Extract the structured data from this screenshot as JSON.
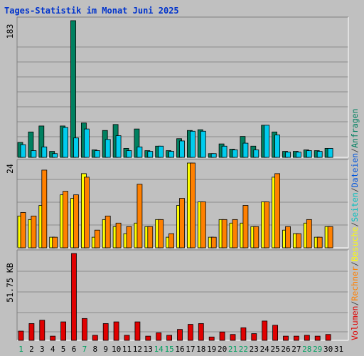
{
  "title": "Tages-Statistik im Monat Juni 2025",
  "colors": {
    "background": "#c0c0c0",
    "title": "#0033cc",
    "grid": "#8c8c8c",
    "requests": "#008060",
    "files": "#00ccee",
    "visits": "#ffff00",
    "hosts": "#ff8000",
    "volume": "#e00000",
    "weekday_label": "#008000",
    "weekend_label": "#00a060"
  },
  "legend": {
    "volume": "Volumen",
    "sep1": "/",
    "hosts": "Rechner",
    "sep2": "/",
    "visits": "Besuche",
    "sep3": "/",
    "pages": "Seiten",
    "sep4": "/",
    "files": "Dateien",
    "sep5": "/",
    "requests": "Anfragen"
  },
  "chart_data": [
    {
      "type": "bar",
      "panel": "hits",
      "ymax_label": "183",
      "ylim": [
        0,
        183
      ],
      "categories": [
        "1",
        "2",
        "3",
        "4",
        "5",
        "6",
        "7",
        "8",
        "9",
        "10",
        "11",
        "12",
        "13",
        "14",
        "15",
        "16",
        "17",
        "18",
        "19",
        "20",
        "21",
        "22",
        "23",
        "24",
        "25",
        "26",
        "27",
        "28",
        "29",
        "30",
        "31"
      ],
      "weekend_days": [
        1,
        7,
        14,
        15,
        21,
        22,
        28,
        29
      ],
      "series": [
        {
          "name": "Anfragen",
          "values": [
            20,
            34,
            42,
            8,
            42,
            183,
            46,
            10,
            36,
            44,
            12,
            38,
            9,
            15,
            9,
            25,
            36,
            37,
            5,
            18,
            11,
            28,
            15,
            43,
            34,
            8,
            8,
            10,
            9,
            12,
            null
          ]
        },
        {
          "name": "Dateien",
          "values": [
            17,
            9,
            14,
            5,
            40,
            26,
            38,
            9,
            24,
            29,
            9,
            14,
            8,
            15,
            8,
            22,
            35,
            35,
            5,
            15,
            10,
            19,
            10,
            43,
            30,
            7,
            7,
            9,
            8,
            12,
            null
          ]
        }
      ]
    },
    {
      "type": "bar",
      "panel": "visits",
      "ymax_label": "24",
      "ylim": [
        0,
        24
      ],
      "categories": [
        "1",
        "2",
        "3",
        "4",
        "5",
        "6",
        "7",
        "8",
        "9",
        "10",
        "11",
        "12",
        "13",
        "14",
        "15",
        "16",
        "17",
        "18",
        "19",
        "20",
        "21",
        "22",
        "23",
        "24",
        "25",
        "26",
        "27",
        "28",
        "29",
        "30",
        "31"
      ],
      "series": [
        {
          "name": "Besuche",
          "values": [
            9,
            8,
            12,
            3,
            15,
            14,
            21,
            3,
            8,
            6,
            4,
            7,
            6,
            8,
            3,
            12,
            24,
            13,
            3,
            8,
            7,
            7,
            6,
            13,
            20,
            5,
            4,
            7,
            3,
            6,
            null
          ]
        },
        {
          "name": "Rechner",
          "values": [
            10,
            9,
            22,
            3,
            16,
            15,
            20,
            5,
            9,
            7,
            6,
            18,
            6,
            8,
            4,
            14,
            24,
            13,
            3,
            8,
            8,
            12,
            6,
            13,
            21,
            6,
            4,
            8,
            3,
            6,
            null
          ]
        }
      ]
    },
    {
      "type": "bar",
      "panel": "volume",
      "ymax_label": "51.75 KB",
      "ylim": [
        0,
        51.75
      ],
      "unit": "KB",
      "categories": [
        "1",
        "2",
        "3",
        "4",
        "5",
        "6",
        "7",
        "8",
        "9",
        "10",
        "11",
        "12",
        "13",
        "14",
        "15",
        "16",
        "17",
        "18",
        "19",
        "20",
        "21",
        "22",
        "23",
        "24",
        "25",
        "26",
        "27",
        "28",
        "29",
        "30",
        "31"
      ],
      "series": [
        {
          "name": "Volumen",
          "values": [
            5.5,
            10,
            12,
            2.5,
            11,
            51.75,
            13,
            3,
            10,
            11,
            3,
            11,
            2.5,
            4.5,
            3,
            6.5,
            9.5,
            10,
            2,
            5,
            3.5,
            7.5,
            4,
            11.5,
            9,
            2.5,
            2.5,
            3,
            2.5,
            3.5,
            null
          ]
        }
      ]
    }
  ]
}
